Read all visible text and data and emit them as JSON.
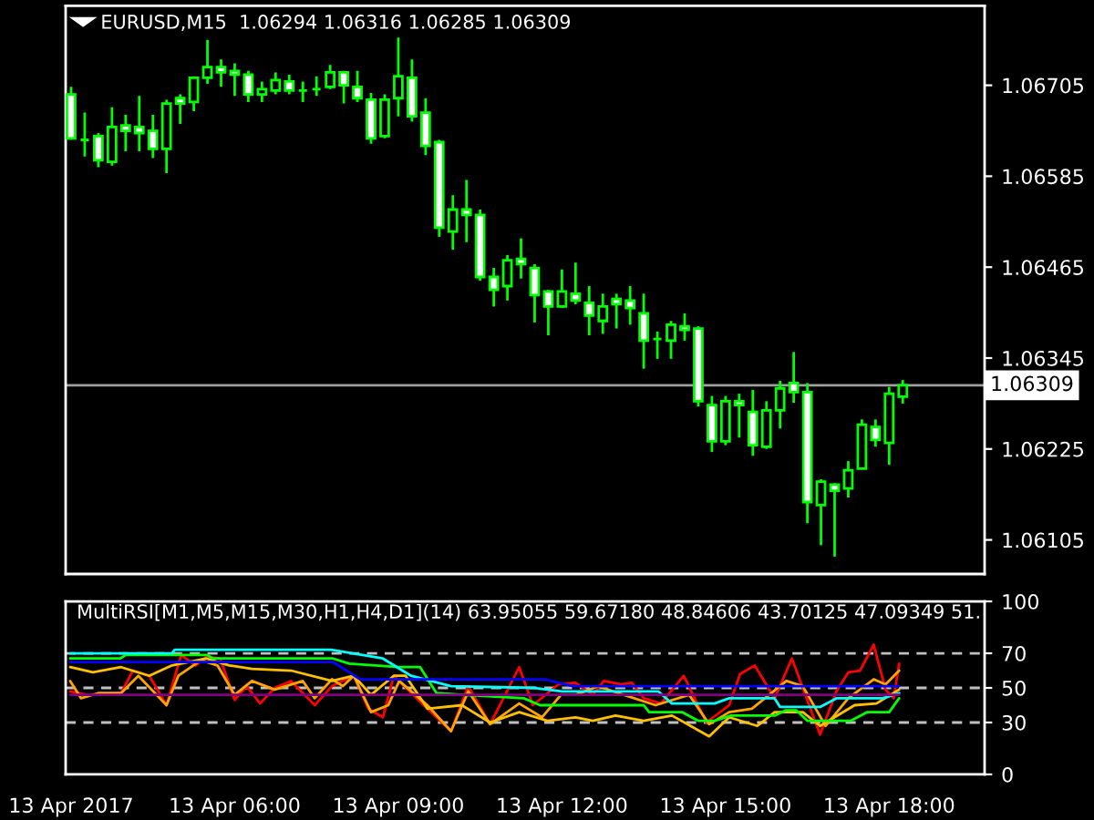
{
  "chart_data": [
    {
      "type": "candlestick",
      "title": "EURUSD,M15  1.06294 1.06316 1.06285 1.06309",
      "color": "#00ff00",
      "x": [
        "2017-04-13T03:00",
        "2017-04-13T03:15",
        "2017-04-13T03:30",
        "2017-04-13T03:45",
        "2017-04-13T04:00",
        "2017-04-13T04:15",
        "2017-04-13T04:30",
        "2017-04-13T04:45",
        "2017-04-13T05:00",
        "2017-04-13T05:15",
        "2017-04-13T05:30",
        "2017-04-13T05:45",
        "2017-04-13T06:00",
        "2017-04-13T06:15",
        "2017-04-13T06:30",
        "2017-04-13T06:45",
        "2017-04-13T07:00",
        "2017-04-13T07:15",
        "2017-04-13T07:30",
        "2017-04-13T07:45",
        "2017-04-13T08:00",
        "2017-04-13T08:15",
        "2017-04-13T08:30",
        "2017-04-13T08:45",
        "2017-04-13T09:00",
        "2017-04-13T09:15",
        "2017-04-13T09:30",
        "2017-04-13T09:45",
        "2017-04-13T10:00",
        "2017-04-13T10:15",
        "2017-04-13T10:30",
        "2017-04-13T10:45",
        "2017-04-13T11:00",
        "2017-04-13T11:15",
        "2017-04-13T11:30",
        "2017-04-13T11:45",
        "2017-04-13T12:00",
        "2017-04-13T12:15",
        "2017-04-13T12:30",
        "2017-04-13T12:45",
        "2017-04-13T13:00",
        "2017-04-13T13:15",
        "2017-04-13T13:30",
        "2017-04-13T13:45",
        "2017-04-13T14:00",
        "2017-04-13T14:15",
        "2017-04-13T14:30",
        "2017-04-13T14:45",
        "2017-04-13T15:00",
        "2017-04-13T15:15",
        "2017-04-13T15:30",
        "2017-04-13T15:45",
        "2017-04-13T16:00",
        "2017-04-13T16:15",
        "2017-04-13T16:30",
        "2017-04-13T16:45",
        "2017-04-13T17:00",
        "2017-04-13T17:15",
        "2017-04-13T17:30",
        "2017-04-13T17:45",
        "2017-04-13T18:00",
        "2017-04-13T18:15"
      ],
      "ohlc": [
        [
          1.06693,
          1.06703,
          1.06633,
          1.06635
        ],
        [
          1.06633,
          1.06669,
          1.06611,
          1.06633
        ],
        [
          1.06638,
          1.06642,
          1.06597,
          1.06606
        ],
        [
          1.06604,
          1.06676,
          1.06599,
          1.0665
        ],
        [
          1.06652,
          1.06666,
          1.06618,
          1.06645
        ],
        [
          1.0665,
          1.06691,
          1.06618,
          1.06642
        ],
        [
          1.06645,
          1.06666,
          1.06609,
          1.06621
        ],
        [
          1.06621,
          1.06686,
          1.06589,
          1.06681
        ],
        [
          1.06688,
          1.06693,
          1.06654,
          1.06681
        ],
        [
          1.06683,
          1.06717,
          1.06671,
          1.06715
        ],
        [
          1.06715,
          1.06765,
          1.06707,
          1.06729
        ],
        [
          1.06729,
          1.06739,
          1.06703,
          1.06722
        ],
        [
          1.06724,
          1.06734,
          1.06691,
          1.06719
        ],
        [
          1.06719,
          1.06724,
          1.06683,
          1.06693
        ],
        [
          1.06693,
          1.0671,
          1.06683,
          1.067
        ],
        [
          1.06698,
          1.06722,
          1.06693,
          1.06712
        ],
        [
          1.0671,
          1.06719,
          1.06693,
          1.06698
        ],
        [
          1.06698,
          1.0671,
          1.06683,
          1.06698
        ],
        [
          1.067,
          1.06717,
          1.06691,
          1.067
        ],
        [
          1.06703,
          1.06732,
          1.067,
          1.06722
        ],
        [
          1.06722,
          1.06724,
          1.06681,
          1.06705
        ],
        [
          1.06703,
          1.06724,
          1.06683,
          1.06688
        ],
        [
          1.06686,
          1.06695,
          1.06628,
          1.06635
        ],
        [
          1.06638,
          1.06693,
          1.06635,
          1.06686
        ],
        [
          1.06688,
          1.06768,
          1.06664,
          1.06717
        ],
        [
          1.06715,
          1.06739,
          1.06657,
          1.06664
        ],
        [
          1.06669,
          1.06688,
          1.06613,
          1.06625
        ],
        [
          1.0663,
          1.06633,
          1.06505,
          1.06517
        ],
        [
          1.06512,
          1.0656,
          1.06488,
          1.06541
        ],
        [
          1.06541,
          1.0658,
          1.06498,
          1.06534
        ],
        [
          1.06534,
          1.06541,
          1.06447,
          1.06452
        ],
        [
          1.06452,
          1.06464,
          1.06413,
          1.06435
        ],
        [
          1.0644,
          1.06481,
          1.06421,
          1.06474
        ],
        [
          1.06476,
          1.06503,
          1.0645,
          1.06469
        ],
        [
          1.06464,
          1.06469,
          1.06392,
          1.06428
        ],
        [
          1.06433,
          1.06435,
          1.06375,
          1.06413
        ],
        [
          1.06413,
          1.06462,
          1.06411,
          1.06433
        ],
        [
          1.0643,
          1.06471,
          1.06416,
          1.06421
        ],
        [
          1.06418,
          1.0644,
          1.06375,
          1.06401
        ],
        [
          1.06394,
          1.0643,
          1.06377,
          1.06413
        ],
        [
          1.06423,
          1.0643,
          1.06384,
          1.06416
        ],
        [
          1.06421,
          1.0644,
          1.06389,
          1.06411
        ],
        [
          1.06404,
          1.0643,
          1.06331,
          1.06368
        ],
        [
          1.0637,
          1.0638,
          1.06344,
          1.0637
        ],
        [
          1.06368,
          1.06394,
          1.06344,
          1.06389
        ],
        [
          1.06387,
          1.06404,
          1.06368,
          1.06382
        ],
        [
          1.06384,
          1.06387,
          1.06281,
          1.06288
        ],
        [
          1.06283,
          1.06295,
          1.06221,
          1.06235
        ],
        [
          1.06235,
          1.06295,
          1.0623,
          1.06288
        ],
        [
          1.06288,
          1.06298,
          1.0624,
          1.06283
        ],
        [
          1.06274,
          1.06303,
          1.06216,
          1.0623
        ],
        [
          1.06228,
          1.06288,
          1.06225,
          1.06276
        ],
        [
          1.06276,
          1.06315,
          1.06252,
          1.06305
        ],
        [
          1.06312,
          1.06353,
          1.06286,
          1.063
        ],
        [
          1.063,
          1.06312,
          1.06127,
          1.06155
        ],
        [
          1.06151,
          1.06185,
          1.06098,
          1.06182
        ],
        [
          1.06178,
          1.0618,
          1.06083,
          1.0617
        ],
        [
          1.06173,
          1.06209,
          1.06161,
          1.06197
        ],
        [
          1.06199,
          1.06264,
          1.06199,
          1.06257
        ],
        [
          1.06254,
          1.06264,
          1.06228,
          1.06237
        ],
        [
          1.06233,
          1.06307,
          1.06204,
          1.06298
        ],
        [
          1.06294,
          1.06316,
          1.06285,
          1.06309
        ]
      ],
      "colors": [
        "#ffffff",
        "#00ff00",
        "#ffffff",
        "#000000",
        "#ffffff",
        "#ffffff",
        "#ffffff",
        "#000000",
        "#ffffff",
        "#000000",
        "#000000",
        "#ffffff",
        "#ffffff",
        "#ffffff",
        "#000000",
        "#000000",
        "#ffffff",
        "#00ff00",
        "#00ff00",
        "#000000",
        "#ffffff",
        "#ffffff",
        "#ffffff",
        "#000000",
        "#000000",
        "#ffffff",
        "#ffffff",
        "#ffffff",
        "#000000",
        "#ffffff",
        "#ffffff",
        "#ffffff",
        "#000000",
        "#ffffff",
        "#ffffff",
        "#ffffff",
        "#000000",
        "#ffffff",
        "#ffffff",
        "#000000",
        "#ffffff",
        "#ffffff",
        "#ffffff",
        "#00ff00",
        "#000000",
        "#ffffff",
        "#ffffff",
        "#ffffff",
        "#000000",
        "#ffffff",
        "#ffffff",
        "#000000",
        "#000000",
        "#ffffff",
        "#ffffff",
        "#000000",
        "#ffffff",
        "#000000",
        "#000000",
        "#ffffff",
        "#000000",
        "#000000"
      ],
      "xlim": [
        "2017-04-13T02:54",
        "2017-04-13T19:45"
      ],
      "ylim": [
        1.0606,
        1.0681
      ],
      "yticks": [
        1.06105,
        1.06225,
        1.06345,
        1.06465,
        1.06585,
        1.06705
      ],
      "ref_lines": [
        {
          "axis": "y",
          "value": 1.06309,
          "label": "1.06309",
          "color": "#a0a0a0",
          "line_style": "solid"
        }
      ],
      "tick_labels": "y"
    },
    {
      "type": "line",
      "title": "MultiRSI[M1,M5,M15,M30,H1,H4,D1](14) 63.95055 59.67180 48.84606 43.70125 47.09349 51.",
      "series": [
        {
          "color": "#ff0000",
          "x": [
            "2017-04-13T02:59",
            "2017-04-13T03:18",
            "2017-04-13T03:55",
            "2017-04-13T04:08",
            "2017-04-13T04:26",
            "2017-04-13T04:45",
            "2017-04-13T05:01",
            "2017-04-13T05:17",
            "2017-04-13T05:29",
            "2017-04-13T05:44",
            "2017-04-13T06:00",
            "2017-04-13T06:13",
            "2017-04-13T06:28",
            "2017-04-13T06:44",
            "2017-04-13T07:02",
            "2017-04-13T07:28",
            "2017-04-13T07:47",
            "2017-04-13T08:11",
            "2017-04-13T08:27",
            "2017-04-13T08:43",
            "2017-04-13T08:55",
            "2017-04-13T09:26",
            "2017-04-13T09:58",
            "2017-04-13T10:17",
            "2017-04-13T10:41",
            "2017-04-13T11:13",
            "2017-04-13T11:28",
            "2017-04-13T11:56",
            "2017-04-13T12:15",
            "2017-04-13T12:34",
            "2017-04-13T12:46",
            "2017-04-13T13:05",
            "2017-04-13T13:17",
            "2017-04-13T13:30",
            "2017-04-13T13:49",
            "2017-04-13T14:14",
            "2017-04-13T14:39",
            "2017-04-13T15:04",
            "2017-04-13T15:16",
            "2017-04-13T15:32",
            "2017-04-13T15:54",
            "2017-04-13T16:13",
            "2017-04-13T16:44",
            "2017-04-13T17:02",
            "2017-04-13T17:15",
            "2017-04-13T17:28",
            "2017-04-13T17:43",
            "2017-04-13T17:56",
            "2017-04-13T18:05",
            "2017-04-13T18:11"
          ],
          "values": [
            48,
            46,
            47,
            60,
            57,
            40,
            69,
            63,
            68,
            67,
            43,
            51,
            41,
            50,
            54,
            40,
            51,
            57,
            38,
            33,
            57,
            41,
            25,
            51,
            29,
            62,
            40,
            52,
            53,
            46,
            54,
            52,
            53,
            44,
            41,
            57,
            30,
            40,
            58,
            63,
            44,
            67,
            23,
            48,
            59,
            60,
            75,
            49,
            44,
            64
          ]
        },
        {
          "color": "#ffa500",
          "x": [
            "2017-04-13T02:59",
            "2017-04-13T03:11",
            "2017-04-13T03:30",
            "2017-04-13T03:55",
            "2017-04-13T04:14",
            "2017-04-13T04:45",
            "2017-04-13T04:58",
            "2017-04-13T05:23",
            "2017-04-13T05:41",
            "2017-04-13T06:00",
            "2017-04-13T06:19",
            "2017-04-13T06:44",
            "2017-04-13T07:15",
            "2017-04-13T07:28",
            "2017-04-13T07:47",
            "2017-04-13T07:59",
            "2017-04-13T08:11",
            "2017-04-13T08:30",
            "2017-04-13T08:49",
            "2017-04-13T09:01",
            "2017-04-13T09:32",
            "2017-04-13T09:58",
            "2017-04-13T10:17",
            "2017-04-13T10:41",
            "2017-04-13T11:13",
            "2017-04-13T11:38",
            "2017-04-13T11:59",
            "2017-04-13T12:15",
            "2017-04-13T12:40",
            "2017-04-13T13:02",
            "2017-04-13T13:43",
            "2017-04-13T14:20",
            "2017-04-13T14:42",
            "2017-04-13T15:04",
            "2017-04-13T15:29",
            "2017-04-13T16:07",
            "2017-04-13T16:25",
            "2017-04-13T16:50",
            "2017-04-13T17:15",
            "2017-04-13T17:43",
            "2017-04-13T17:56",
            "2017-04-13T18:11"
          ],
          "values": [
            54,
            44,
            47,
            47,
            57,
            40,
            57,
            66,
            63,
            46,
            54,
            49,
            54,
            44,
            55,
            51,
            57,
            36,
            40,
            54,
            40,
            25,
            48,
            29,
            41,
            33,
            46,
            46,
            51,
            47,
            40,
            46,
            29,
            36,
            38,
            54,
            51,
            28,
            44,
            55,
            52,
            60
          ]
        },
        {
          "color": "#ffc000",
          "x": [
            "2017-04-13T02:59",
            "2017-04-13T03:24",
            "2017-04-13T03:55",
            "2017-04-13T04:26",
            "2017-04-13T04:51",
            "2017-04-13T05:29",
            "2017-04-13T05:54",
            "2017-04-13T06:19",
            "2017-04-13T07:02",
            "2017-04-13T07:47",
            "2017-04-13T08:11",
            "2017-04-13T08:30",
            "2017-04-13T08:55",
            "2017-04-13T09:08",
            "2017-04-13T09:32",
            "2017-04-13T10:10",
            "2017-04-13T10:41",
            "2017-04-13T11:13",
            "2017-04-13T11:44",
            "2017-04-13T12:15",
            "2017-04-13T12:34",
            "2017-04-13T12:59",
            "2017-04-13T13:30",
            "2017-04-13T14:01",
            "2017-04-13T14:42",
            "2017-04-13T15:04",
            "2017-04-13T15:35",
            "2017-04-13T15:54",
            "2017-04-13T16:25",
            "2017-04-13T16:44",
            "2017-04-13T17:22",
            "2017-04-13T17:46",
            "2017-04-13T18:11"
          ],
          "values": [
            62,
            59,
            62,
            57,
            63,
            67,
            63,
            61,
            60,
            54,
            57,
            46,
            57,
            57,
            38,
            40,
            30,
            36,
            31,
            33,
            31,
            34,
            31,
            34,
            22,
            33,
            28,
            36,
            36,
            28,
            40,
            41,
            49
          ]
        },
        {
          "color": "#00ff00",
          "x": [
            "2017-04-13T02:59",
            "2017-04-13T03:54",
            "2017-04-13T04:00",
            "2017-04-13T05:30",
            "2017-04-13T05:36",
            "2017-04-13T07:48",
            "2017-04-13T08:06",
            "2017-04-13T09:00",
            "2017-04-13T09:24",
            "2017-04-13T09:42",
            "2017-04-13T10:12",
            "2017-04-13T11:18",
            "2017-04-13T11:36",
            "2017-04-13T13:30",
            "2017-04-13T13:36",
            "2017-04-13T14:12",
            "2017-04-13T14:30",
            "2017-04-13T14:48",
            "2017-04-13T15:06",
            "2017-04-13T15:54",
            "2017-04-13T16:06",
            "2017-04-13T16:18",
            "2017-04-13T16:30",
            "2017-04-13T17:18",
            "2017-04-13T17:36",
            "2017-04-13T18:00",
            "2017-04-13T18:11"
          ],
          "values": [
            67,
            67,
            69,
            69,
            67,
            67,
            64,
            62,
            62,
            47,
            46,
            44,
            40,
            40,
            36,
            36,
            31,
            31,
            34,
            34,
            37,
            37,
            31,
            31,
            36,
            36,
            44
          ]
        },
        {
          "color": "#00ffff",
          "x": [
            "2017-04-13T02:59",
            "2017-04-13T04:51",
            "2017-04-13T04:54",
            "2017-04-13T07:46",
            "2017-04-13T08:43",
            "2017-04-13T09:14",
            "2017-04-13T09:58",
            "2017-04-13T11:30",
            "2017-04-13T12:00",
            "2017-04-13T13:46",
            "2017-04-13T14:01",
            "2017-04-13T14:48",
            "2017-04-13T15:04",
            "2017-04-13T15:54",
            "2017-04-13T16:00",
            "2017-04-13T16:44",
            "2017-04-13T17:02",
            "2017-04-13T17:53",
            "2017-04-13T18:11"
          ],
          "values": [
            70,
            70,
            72,
            72,
            67,
            57,
            51,
            50,
            48,
            48,
            41,
            41,
            44,
            44,
            39,
            39,
            44,
            44,
            47
          ]
        },
        {
          "color": "#0000ff",
          "x": [
            "2017-04-13T02:59",
            "2017-04-13T07:48",
            "2017-04-13T08:18",
            "2017-04-13T11:42",
            "2017-04-13T11:48",
            "2017-04-13T12:12",
            "2017-04-13T18:11"
          ],
          "values": [
            65,
            65,
            55,
            55,
            54,
            51,
            51
          ]
        },
        {
          "color": "#800080",
          "x": [
            "2017-04-13T02:59",
            "2017-04-13T18:11"
          ],
          "values": [
            46,
            46
          ]
        }
      ],
      "xlim": [
        "2017-04-13T02:54",
        "2017-04-13T19:45"
      ],
      "xticks": [
        {
          "value": "2017-04-13T03:00",
          "label": "13 Apr 2017"
        },
        {
          "value": "2017-04-13T06:00",
          "label": "13 Apr 06:00"
        },
        {
          "value": "2017-04-13T09:00",
          "label": "13 Apr 09:00"
        },
        {
          "value": "2017-04-13T12:00",
          "label": "13 Apr 12:00"
        },
        {
          "value": "2017-04-13T15:00",
          "label": "13 Apr 15:00"
        },
        {
          "value": "2017-04-13T18:00",
          "label": "13 Apr 18:00"
        }
      ],
      "ylim": [
        0,
        100
      ],
      "yticks": [
        0,
        30,
        50,
        70,
        100
      ],
      "ref_lines": [
        {
          "axis": "y",
          "value": 30,
          "color": "#c0c0c0",
          "line_style": "dashed"
        },
        {
          "axis": "y",
          "value": 50,
          "color": "#c0c0c0",
          "line_style": "dashed"
        },
        {
          "axis": "y",
          "value": 70,
          "color": "#c0c0c0",
          "line_style": "dashed"
        }
      ]
    }
  ]
}
